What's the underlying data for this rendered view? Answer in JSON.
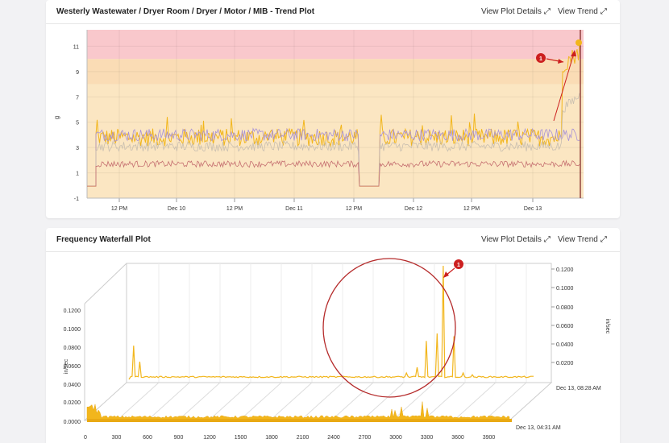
{
  "trend_card": {
    "title": "Westerly Wastewater / Dryer Room / Dryer / Motor / MIB - Trend Plot",
    "view_details_label": "View Plot Details",
    "view_trend_label": "View Trend",
    "expand_icon": "expand-icon",
    "marker_label": "1"
  },
  "waterfall_card": {
    "title": "Frequency Waterfall Plot",
    "view_details_label": "View Plot Details",
    "view_trend_label": "View Trend",
    "expand_icon": "expand-icon",
    "marker_label": "1"
  },
  "chart_data": [
    {
      "type": "line",
      "ylabel": "g",
      "ylim": [
        -1,
        12
      ],
      "y_ticks": [
        "-1",
        "1",
        "3",
        "5",
        "7",
        "9",
        "11"
      ],
      "x_ticks": [
        "12 PM",
        "Dec 10",
        "12 PM",
        "Dec 11",
        "12 PM",
        "Dec 12",
        "12 PM",
        "Dec 13"
      ],
      "bands": [
        {
          "from": -1,
          "to": 8,
          "color": "#fbe6c2"
        },
        {
          "from": 8,
          "to": 10,
          "color": "#fadcb5"
        },
        {
          "from": 10,
          "to": 12.3,
          "color": "#f9c8cc"
        }
      ],
      "series": [
        {
          "color": "#f2b61c",
          "baseline": 3.8,
          "values_summary": "approx 3.5-4.5 with spikes to 5; jumps to ~9-11 at end"
        },
        {
          "color": "#a892d6",
          "baseline": 4.0,
          "values_summary": "approx 3.5-4.5; spike to 8.5 near Dec 11 12 PM"
        },
        {
          "color": "#c9bfb0",
          "baseline": 3.1,
          "values_summary": "approx 3; rises to ~7 at end"
        },
        {
          "color": "#c56f70",
          "baseline": 1.7,
          "values_summary": "approx 1.5-2"
        }
      ],
      "grid": true,
      "legend": "none"
    },
    {
      "type": "area",
      "ylabel": "in/sec",
      "y_ticks_left": [
        "0.0000",
        "0.0200",
        "0.0400",
        "0.0600",
        "0.0800",
        "0.1000",
        "0.1200"
      ],
      "y_ticks_right": [
        "0.0200",
        "0.0400",
        "0.0600",
        "0.0800",
        "0.1000",
        "0.1200"
      ],
      "x_ticks": [
        "0",
        "300",
        "600",
        "900",
        "1200",
        "1500",
        "1800",
        "2100",
        "2400",
        "2700",
        "3000",
        "3300",
        "3600",
        "3900"
      ],
      "time_labels": [
        "Dec 13, 08:28 AM",
        "Dec 13, 04:31 AM"
      ],
      "back_spectrum_peaks": [
        {
          "freq": 30,
          "value": 0.035
        },
        {
          "freq": 90,
          "value": 0.018
        },
        {
          "freq": 2700,
          "value": 0.006
        },
        {
          "freq": 2800,
          "value": 0.012
        },
        {
          "freq": 2900,
          "value": 0.04
        },
        {
          "freq": 3000,
          "value": 0.048
        },
        {
          "freq": 3060,
          "value": 0.12
        },
        {
          "freq": 3160,
          "value": 0.045
        },
        {
          "freq": 3260,
          "value": 0.006
        },
        {
          "freq": 3350,
          "value": 0.004
        }
      ],
      "grid": true,
      "legend": "none"
    }
  ]
}
